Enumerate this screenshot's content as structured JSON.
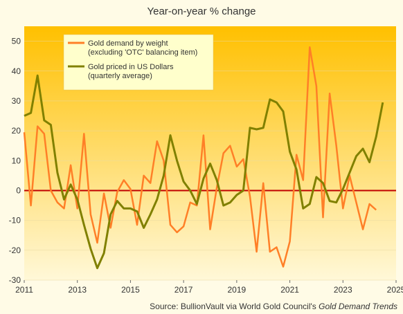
{
  "chart_data": {
    "type": "line",
    "title": "Year-on-year  % change",
    "source": "Source: BullionVault via World Gold Council's",
    "source_italic": "Gold Demand Trends",
    "xlim": [
      2011,
      2025
    ],
    "ylim": [
      -30,
      55
    ],
    "x_ticks": [
      "2011",
      "2013",
      "2015",
      "2017",
      "2019",
      "2021",
      "2023",
      "2025"
    ],
    "x_tick_values": [
      2011,
      2013,
      2015,
      2017,
      2019,
      2021,
      2023,
      2025
    ],
    "y_ticks": [
      "50",
      "40",
      "30",
      "20",
      "10",
      "0",
      "-10",
      "-20",
      "-30"
    ],
    "y_tick_values": [
      50,
      40,
      30,
      20,
      10,
      0,
      -10,
      -20,
      -30
    ],
    "zero_line_color": "#c00000",
    "background_gradient": [
      "#ffc000",
      "#fff8d8"
    ],
    "legend": {
      "placement": "top-left",
      "entries": [
        {
          "line1": "Gold demand by weight",
          "line2": "(excluding 'OTC' balancing item)",
          "color": "#ff7f27"
        },
        {
          "line1": "Gold priced in US Dollars",
          "line2": "(quarterly average)",
          "color": "#808000"
        }
      ]
    },
    "series": [
      {
        "name": "Gold demand by weight",
        "color": "#ff7f27",
        "x": [
          2011.0,
          2011.25,
          2011.5,
          2011.75,
          2012.0,
          2012.25,
          2012.5,
          2012.75,
          2013.0,
          2013.25,
          2013.5,
          2013.75,
          2014.0,
          2014.25,
          2014.5,
          2014.75,
          2015.0,
          2015.25,
          2015.5,
          2015.75,
          2016.0,
          2016.25,
          2016.5,
          2016.75,
          2017.0,
          2017.25,
          2017.5,
          2017.75,
          2018.0,
          2018.25,
          2018.5,
          2018.75,
          2019.0,
          2019.25,
          2019.5,
          2019.75,
          2020.0,
          2020.25,
          2020.5,
          2020.75,
          2021.0,
          2021.25,
          2021.5,
          2021.75,
          2022.0,
          2022.25,
          2022.5,
          2022.75,
          2023.0,
          2023.25,
          2023.5,
          2023.75,
          2024.0,
          2024.25
        ],
        "y": [
          19.5,
          -5,
          21.5,
          19,
          0,
          -4,
          -6,
          8.5,
          -6,
          19,
          -8,
          -17.5,
          -1,
          -12.5,
          -0.5,
          3.5,
          0.5,
          -11.5,
          5,
          2.5,
          16.5,
          10,
          -11.5,
          -14,
          -12,
          -4,
          -5,
          18.5,
          -13,
          1,
          12.5,
          15,
          8,
          10.5,
          -2,
          -20.5,
          2.5,
          -20.5,
          -19,
          -25.5,
          -17,
          12,
          3.5,
          48,
          35,
          -9,
          32.5,
          15,
          -6,
          5,
          -4,
          -13,
          -4.5,
          -6.5
        ]
      },
      {
        "name": "Gold priced in US Dollars",
        "color": "#808000",
        "x": [
          2011.0,
          2011.25,
          2011.5,
          2011.75,
          2012.0,
          2012.25,
          2012.5,
          2012.75,
          2013.0,
          2013.25,
          2013.5,
          2013.75,
          2014.0,
          2014.25,
          2014.5,
          2014.75,
          2015.0,
          2015.25,
          2015.5,
          2015.75,
          2016.0,
          2016.25,
          2016.5,
          2016.75,
          2017.0,
          2017.25,
          2017.5,
          2017.75,
          2018.0,
          2018.25,
          2018.5,
          2018.75,
          2019.0,
          2019.25,
          2019.5,
          2019.75,
          2020.0,
          2020.25,
          2020.5,
          2020.75,
          2021.0,
          2021.25,
          2021.5,
          2021.75,
          2022.0,
          2022.25,
          2022.5,
          2022.75,
          2023.0,
          2023.25,
          2023.5,
          2023.75,
          2024.0,
          2024.25,
          2024.5
        ],
        "y": [
          25,
          26,
          38.5,
          23.5,
          22,
          6,
          -3,
          2,
          -3,
          -11.5,
          -19.5,
          -26,
          -21,
          -8,
          -3.5,
          -6,
          -6,
          -7,
          -12.5,
          -8,
          -3,
          5,
          18.5,
          10,
          3,
          0,
          -4.5,
          4,
          9,
          3.5,
          -5,
          -4,
          -1.5,
          0,
          21,
          20.5,
          21,
          30.5,
          29.5,
          26.5,
          13,
          7,
          -6,
          -4.5,
          4.5,
          2.5,
          -3.5,
          -4,
          0.5,
          6,
          11.5,
          14,
          9.5,
          18,
          29.5
        ]
      }
    ]
  }
}
